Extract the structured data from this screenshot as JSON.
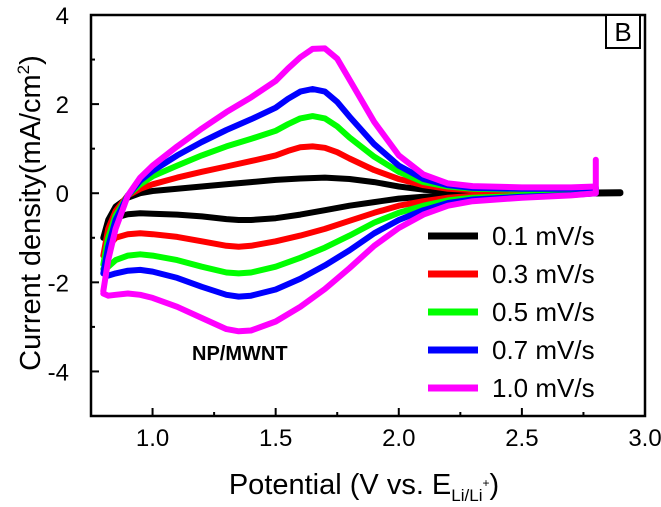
{
  "chart_data": {
    "type": "line",
    "panel_label": "B",
    "sample_label": "NP/MWNT",
    "xlabel": {
      "main": "Potential (V vs. E",
      "subscript": "Li/Li",
      "superscript": "+",
      "close": ")"
    },
    "ylabel": {
      "main": "Current density(mA/cm",
      "superscript": "2",
      "close": ")"
    },
    "xlim": [
      0.75,
      3.0
    ],
    "ylim": [
      -5,
      4
    ],
    "xticks": [
      1.0,
      1.5,
      2.0,
      2.5,
      3.0
    ],
    "xtick_labels": [
      "1.0",
      "1.5",
      "2.0",
      "2.5",
      "3.0"
    ],
    "yticks": [
      -4,
      -2,
      0,
      2,
      4
    ],
    "ytick_labels": [
      "-4",
      "-2",
      "0",
      "2",
      "4"
    ],
    "legend_position": "lower-right",
    "series": [
      {
        "name": "0.1 mV/s",
        "color": "#000000",
        "x": [
          0.8,
          0.82,
          0.85,
          0.9,
          0.95,
          1.0,
          1.1,
          1.2,
          1.3,
          1.4,
          1.5,
          1.6,
          1.7,
          1.8,
          1.9,
          2.0,
          2.1,
          2.2,
          2.3,
          2.5,
          2.7,
          2.9,
          2.9,
          2.7,
          2.5,
          2.3,
          2.2,
          2.1,
          2.0,
          1.9,
          1.8,
          1.7,
          1.6,
          1.5,
          1.4,
          1.35,
          1.3,
          1.2,
          1.1,
          1.0,
          0.95,
          0.9,
          0.85,
          0.82,
          0.8
        ],
        "y": [
          -1.0,
          -0.6,
          -0.3,
          -0.1,
          0.0,
          0.05,
          0.1,
          0.15,
          0.2,
          0.25,
          0.3,
          0.33,
          0.35,
          0.32,
          0.25,
          0.15,
          0.08,
          0.04,
          0.02,
          0.01,
          0.01,
          0.02,
          0.0,
          -0.01,
          -0.02,
          -0.03,
          -0.05,
          -0.08,
          -0.12,
          -0.2,
          -0.28,
          -0.38,
          -0.48,
          -0.56,
          -0.6,
          -0.6,
          -0.58,
          -0.52,
          -0.48,
          -0.46,
          -0.45,
          -0.47,
          -0.55,
          -0.7,
          -1.0
        ]
      },
      {
        "name": "0.3 mV/s",
        "color": "#ff0000",
        "x": [
          0.8,
          0.82,
          0.85,
          0.9,
          0.95,
          1.0,
          1.1,
          1.2,
          1.3,
          1.4,
          1.5,
          1.55,
          1.6,
          1.65,
          1.7,
          1.75,
          1.8,
          1.9,
          2.0,
          2.1,
          2.2,
          2.3,
          2.5,
          2.7,
          2.8,
          2.8,
          2.7,
          2.5,
          2.3,
          2.2,
          2.1,
          2.0,
          1.9,
          1.8,
          1.7,
          1.6,
          1.5,
          1.4,
          1.35,
          1.3,
          1.2,
          1.1,
          1.0,
          0.95,
          0.9,
          0.85,
          0.82,
          0.8
        ],
        "y": [
          -1.4,
          -0.8,
          -0.4,
          -0.05,
          0.1,
          0.2,
          0.35,
          0.48,
          0.6,
          0.72,
          0.85,
          0.95,
          1.03,
          1.05,
          1.02,
          0.92,
          0.78,
          0.52,
          0.32,
          0.18,
          0.1,
          0.07,
          0.05,
          0.05,
          0.07,
          0.0,
          -0.02,
          -0.04,
          -0.06,
          -0.1,
          -0.18,
          -0.28,
          -0.44,
          -0.62,
          -0.8,
          -0.95,
          -1.08,
          -1.18,
          -1.2,
          -1.18,
          -1.08,
          -0.98,
          -0.92,
          -0.9,
          -0.92,
          -1.0,
          -1.2,
          -1.4
        ]
      },
      {
        "name": "0.5 mV/s",
        "color": "#00ff00",
        "x": [
          0.8,
          0.82,
          0.85,
          0.9,
          0.95,
          1.0,
          1.1,
          1.2,
          1.3,
          1.4,
          1.5,
          1.55,
          1.6,
          1.65,
          1.7,
          1.75,
          1.8,
          1.9,
          2.0,
          2.1,
          2.2,
          2.3,
          2.5,
          2.7,
          2.8,
          2.8,
          2.7,
          2.5,
          2.3,
          2.2,
          2.1,
          2.0,
          1.9,
          1.8,
          1.7,
          1.6,
          1.5,
          1.4,
          1.35,
          1.3,
          1.2,
          1.1,
          1.0,
          0.95,
          0.9,
          0.85,
          0.82,
          0.8
        ],
        "y": [
          -1.6,
          -1.0,
          -0.5,
          -0.05,
          0.2,
          0.38,
          0.62,
          0.85,
          1.05,
          1.22,
          1.4,
          1.55,
          1.68,
          1.73,
          1.68,
          1.5,
          1.25,
          0.82,
          0.48,
          0.25,
          0.15,
          0.1,
          0.08,
          0.08,
          0.1,
          0.0,
          -0.03,
          -0.06,
          -0.1,
          -0.16,
          -0.28,
          -0.44,
          -0.66,
          -0.95,
          -1.22,
          -1.45,
          -1.65,
          -1.78,
          -1.8,
          -1.78,
          -1.65,
          -1.5,
          -1.4,
          -1.37,
          -1.4,
          -1.5,
          -1.65,
          -1.7
        ]
      },
      {
        "name": "0.7 mV/s",
        "color": "#0000ff",
        "x": [
          0.8,
          0.82,
          0.85,
          0.9,
          0.95,
          1.0,
          1.1,
          1.2,
          1.3,
          1.4,
          1.5,
          1.55,
          1.6,
          1.65,
          1.7,
          1.75,
          1.8,
          1.9,
          2.0,
          2.1,
          2.2,
          2.3,
          2.5,
          2.7,
          2.8,
          2.8,
          2.7,
          2.5,
          2.3,
          2.2,
          2.1,
          2.0,
          1.9,
          1.8,
          1.7,
          1.6,
          1.5,
          1.4,
          1.35,
          1.3,
          1.2,
          1.1,
          1.0,
          0.95,
          0.9,
          0.85,
          0.82,
          0.8
        ],
        "y": [
          -1.8,
          -1.2,
          -0.6,
          -0.05,
          0.28,
          0.5,
          0.85,
          1.15,
          1.42,
          1.66,
          1.92,
          2.12,
          2.28,
          2.34,
          2.28,
          2.05,
          1.72,
          1.1,
          0.62,
          0.32,
          0.18,
          0.12,
          0.1,
          0.1,
          0.13,
          0.0,
          -0.04,
          -0.08,
          -0.14,
          -0.22,
          -0.38,
          -0.6,
          -0.9,
          -1.28,
          -1.62,
          -1.92,
          -2.16,
          -2.3,
          -2.32,
          -2.28,
          -2.1,
          -1.9,
          -1.76,
          -1.72,
          -1.74,
          -1.8,
          -1.85,
          -1.8
        ]
      },
      {
        "name": "1.0 mV/s",
        "color": "#ff00ff",
        "x": [
          0.8,
          0.82,
          0.85,
          0.9,
          0.95,
          1.0,
          1.1,
          1.2,
          1.3,
          1.4,
          1.5,
          1.55,
          1.6,
          1.65,
          1.7,
          1.75,
          1.8,
          1.9,
          2.0,
          2.1,
          2.2,
          2.3,
          2.5,
          2.7,
          2.8,
          2.8,
          2.8,
          2.7,
          2.5,
          2.3,
          2.2,
          2.1,
          2.0,
          1.9,
          1.8,
          1.7,
          1.6,
          1.5,
          1.4,
          1.35,
          1.3,
          1.2,
          1.1,
          1.0,
          0.95,
          0.9,
          0.85,
          0.82,
          0.8
        ],
        "y": [
          -2.2,
          -1.5,
          -0.8,
          -0.05,
          0.35,
          0.62,
          1.05,
          1.45,
          1.82,
          2.15,
          2.52,
          2.8,
          3.05,
          3.24,
          3.25,
          3.02,
          2.55,
          1.6,
          0.85,
          0.42,
          0.22,
          0.16,
          0.13,
          0.13,
          0.15,
          0.75,
          0.0,
          -0.05,
          -0.1,
          -0.18,
          -0.28,
          -0.48,
          -0.78,
          -1.18,
          -1.68,
          -2.15,
          -2.55,
          -2.88,
          -3.08,
          -3.1,
          -3.05,
          -2.8,
          -2.55,
          -2.35,
          -2.28,
          -2.25,
          -2.28,
          -2.3,
          -2.25
        ]
      }
    ]
  }
}
